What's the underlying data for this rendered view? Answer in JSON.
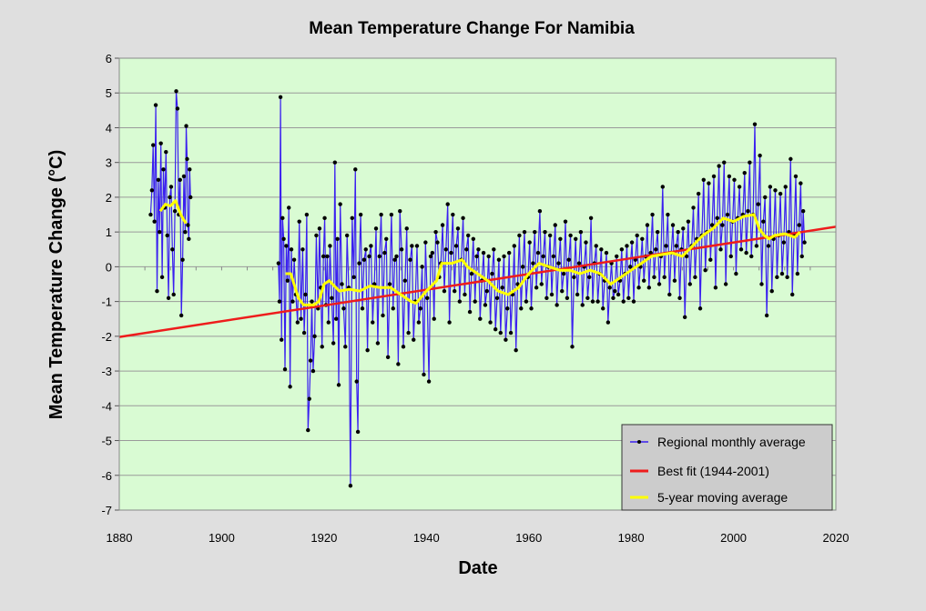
{
  "chart_data": {
    "type": "line",
    "title": "Mean Temperature Change For Namibia",
    "xlabel": "Date",
    "ylabel": "Mean  Temperature  Change  (°C)",
    "xlim": [
      1880,
      2020
    ],
    "ylim": [
      -7,
      6
    ],
    "x_ticks": [
      "1880",
      "1900",
      "1920",
      "1940",
      "1960",
      "1980",
      "2000",
      "2020"
    ],
    "y_ticks": [
      "6",
      "5",
      "4",
      "3",
      "2",
      "1",
      "0",
      "-1",
      "-2",
      "-3",
      "-4",
      "-5",
      "-6",
      "-7"
    ],
    "grid": "horizontal",
    "legend_position": "bottom-right",
    "colors": {
      "plot_bg": "#d9fbd3",
      "monthly": "#3a1ff0",
      "marker": "#000000",
      "fit": "#ee1c1c",
      "moving": "#ffff00",
      "legend_bg": "#cccccc"
    },
    "series": [
      {
        "name": "Regional monthly average",
        "values_by_year": {
          "1886": [
            1.5,
            2.2,
            3.5,
            1.3
          ],
          "1887": [
            4.65,
            -0.7,
            2.5,
            1.0
          ],
          "1888": [
            3.55,
            -0.3,
            2.8,
            1.7
          ],
          "1889": [
            3.3,
            0.9,
            -0.9,
            2.0
          ],
          "1890": [
            2.3,
            0.5,
            -0.8,
            1.6
          ],
          "1891": [
            5.05,
            4.55,
            1.5,
            2.5
          ],
          "1892": [
            -1.4,
            0.2,
            2.6,
            1.0
          ],
          "1893": [
            4.05,
            3.1,
            1.2,
            0.8,
            2.8,
            2.0
          ],
          "1911": [
            0.1,
            -1.0,
            4.88,
            -2.1,
            1.4
          ],
          "1912": [
            0.8,
            -2.95,
            0.6,
            -0.4
          ],
          "1913": [
            1.7,
            -3.45,
            0.5,
            -1.0
          ],
          "1914": [
            0.2,
            -0.8,
            -1.6
          ],
          "1915": [
            1.3,
            -1.5,
            0.5
          ],
          "1916": [
            -1.9,
            -0.8,
            1.5,
            -4.7
          ],
          "1917": [
            -3.8,
            -2.7,
            -1.0,
            -3.0
          ],
          "1918": [
            -2.0,
            0.9,
            -1.2
          ],
          "1919": [
            1.1,
            -0.6,
            -2.3,
            0.3
          ],
          "1920": [
            1.4,
            -1.1,
            0.3,
            -1.6
          ],
          "1921": [
            0.6,
            -0.9,
            -2.2
          ],
          "1922": [
            3.0,
            -1.5,
            0.8,
            -3.4
          ],
          "1923": [
            1.8,
            -0.5,
            -1.2
          ],
          "1924": [
            -2.3,
            0.9,
            -0.6
          ],
          "1925": [
            -6.3,
            1.4,
            -0.3
          ],
          "1926": [
            2.8,
            -3.3,
            -4.75,
            0.1
          ],
          "1927": [
            1.5,
            -1.2,
            0.2
          ],
          "1928": [
            0.5,
            -2.4,
            0.3
          ],
          "1929": [
            0.6,
            -1.6,
            -0.5
          ],
          "1930": [
            1.1,
            -2.2,
            0.3
          ],
          "1931": [
            1.5,
            -1.4,
            0.4
          ],
          "1932": [
            0.8,
            -2.6,
            -0.5
          ],
          "1933": [
            1.5,
            -1.2,
            0.2
          ],
          "1934": [
            0.3,
            -2.8,
            1.6
          ],
          "1935": [
            0.5,
            -2.3,
            -0.4
          ],
          "1936": [
            1.1,
            -1.9,
            0.2
          ],
          "1937": [
            0.6,
            -2.1,
            -1.0
          ],
          "1938": [
            0.6,
            -1.6,
            -1.2
          ],
          "1939": [
            0.0,
            -3.1,
            0.7
          ],
          "1940": [
            -0.9,
            -3.3,
            0.3
          ],
          "1941": [
            0.4,
            -1.5,
            1.0
          ],
          "1942": [
            0.7,
            -0.3,
            0.1
          ],
          "1943": [
            1.2,
            -0.7,
            0.5
          ],
          "1944": [
            1.8,
            -1.6,
            0.4
          ],
          "1945": [
            1.5,
            -0.7,
            0.6
          ],
          "1946": [
            1.1,
            -1.0,
            0.2
          ],
          "1947": [
            1.4,
            -0.8,
            0.5
          ],
          "1948": [
            0.9,
            -1.3,
            -0.2
          ],
          "1949": [
            0.8,
            -1.0,
            0.3
          ],
          "1950": [
            0.5,
            -1.5,
            -0.4
          ],
          "1951": [
            0.4,
            -1.1,
            -0.7
          ],
          "1952": [
            0.3,
            -1.6,
            -0.2
          ],
          "1953": [
            0.5,
            -1.8,
            -0.9
          ],
          "1954": [
            0.2,
            -1.9,
            -0.6
          ],
          "1955": [
            0.3,
            -2.1,
            -1.2
          ],
          "1956": [
            0.4,
            -1.9,
            -0.8
          ],
          "1957": [
            0.6,
            -2.4,
            -0.5
          ],
          "1958": [
            0.9,
            -1.2,
            0.0
          ],
          "1959": [
            1.0,
            -1.0,
            -0.3
          ],
          "1960": [
            0.7,
            -1.2,
            0.1
          ],
          "1961": [
            1.0,
            -0.6,
            0.4
          ],
          "1962": [
            1.6,
            -0.5,
            0.3
          ],
          "1963": [
            1.0,
            -0.9,
            0.0
          ],
          "1964": [
            0.9,
            -0.8,
            0.3
          ],
          "1965": [
            1.2,
            -1.1,
            0.1
          ],
          "1966": [
            0.8,
            -0.7,
            -0.2
          ],
          "1967": [
            1.3,
            -0.9,
            0.2
          ],
          "1968": [
            0.9,
            -2.3,
            -0.3
          ],
          "1969": [
            0.8,
            -0.8,
            0.1
          ],
          "1970": [
            1.0,
            -1.1,
            0.0
          ],
          "1971": [
            0.7,
            -0.9,
            -0.3
          ],
          "1972": [
            1.4,
            -1.0,
            0.1
          ],
          "1973": [
            0.6,
            -1.0,
            -0.2
          ],
          "1974": [
            0.5,
            -1.2,
            -0.4
          ],
          "1975": [
            0.4,
            -1.6,
            -0.6
          ],
          "1976": [
            0.1,
            -0.9,
            -0.7
          ],
          "1977": [
            0.3,
            -0.8,
            -0.4
          ],
          "1978": [
            0.5,
            -1.0,
            -0.2
          ],
          "1979": [
            0.6,
            -0.9,
            0.0
          ],
          "1980": [
            0.7,
            -1.0,
            0.2
          ],
          "1981": [
            0.9,
            -0.6,
            0.0
          ],
          "1982": [
            0.8,
            -0.4,
            0.3
          ],
          "1983": [
            1.2,
            -0.6,
            0.4
          ],
          "1984": [
            1.5,
            -0.3,
            0.5
          ],
          "1985": [
            1.0,
            -0.5,
            0.3
          ],
          "1986": [
            2.3,
            -0.3,
            0.6
          ],
          "1987": [
            1.5,
            -0.8,
            0.4
          ],
          "1988": [
            1.2,
            -0.4,
            0.6
          ],
          "1989": [
            1.0,
            -0.9,
            0.5
          ],
          "1990": [
            1.1,
            -1.45,
            0.3
          ],
          "1991": [
            1.3,
            -0.5,
            0.6
          ],
          "1992": [
            1.7,
            -0.3,
            0.8
          ],
          "1993": [
            2.1,
            -1.2,
            0.9
          ],
          "1994": [
            2.5,
            -0.1,
            1.0
          ],
          "1995": [
            2.4,
            0.2,
            1.2
          ],
          "1996": [
            2.6,
            -0.6,
            1.4
          ],
          "1997": [
            2.9,
            0.5,
            1.2
          ],
          "1998": [
            3.0,
            -0.5,
            1.5
          ],
          "1999": [
            2.6,
            0.3,
            1.3
          ],
          "2000": [
            2.5,
            -0.2,
            1.4
          ],
          "2001": [
            2.3,
            0.5,
            1.5
          ],
          "2002": [
            2.7,
            0.4,
            1.6
          ],
          "2003": [
            3.0,
            0.3,
            1.5
          ],
          "2004": [
            4.1,
            0.6,
            1.8
          ],
          "2005": [
            3.2,
            -0.5,
            1.3
          ],
          "2006": [
            2.0,
            -1.4,
            0.6
          ],
          "2007": [
            2.3,
            -0.7,
            0.8
          ],
          "2008": [
            2.2,
            -0.3,
            0.9
          ],
          "2009": [
            2.1,
            -0.2,
            0.7
          ],
          "2010": [
            2.3,
            -0.3,
            1.0
          ],
          "2011": [
            3.1,
            -0.8,
            0.9
          ],
          "2012": [
            2.6,
            -0.2,
            1.2
          ],
          "2013": [
            2.4,
            0.3,
            1.6,
            0.7
          ]
        }
      },
      {
        "name": "Best fit (1944-2001)",
        "points": [
          [
            1880,
            -2.02
          ],
          [
            2020,
            1.15
          ]
        ]
      },
      {
        "name": "5-year moving average",
        "segments": [
          [
            [
              1888,
              1.6
            ],
            [
              1889,
              1.8
            ],
            [
              1890,
              1.75
            ],
            [
              1891,
              1.9
            ],
            [
              1892,
              1.5
            ],
            [
              1893,
              1.25
            ]
          ],
          [
            [
              1912.5,
              -0.2
            ],
            [
              1913.5,
              -0.2
            ],
            [
              1915,
              -0.9
            ],
            [
              1916,
              -1.1
            ],
            [
              1918,
              -1.1
            ],
            [
              1919,
              -1.0
            ],
            [
              1920,
              -0.5
            ],
            [
              1921,
              -0.4
            ],
            [
              1923,
              -0.7
            ],
            [
              1925,
              -0.65
            ],
            [
              1927,
              -0.7
            ],
            [
              1929,
              -0.55
            ],
            [
              1931,
              -0.6
            ],
            [
              1933,
              -0.6
            ],
            [
              1935,
              -0.8
            ],
            [
              1937,
              -1.0
            ],
            [
              1938,
              -1.05
            ],
            [
              1940,
              -0.7
            ],
            [
              1942,
              -0.4
            ],
            [
              1943,
              0.1
            ],
            [
              1945,
              0.1
            ],
            [
              1947,
              0.2
            ],
            [
              1948,
              0.0
            ],
            [
              1950,
              -0.2
            ],
            [
              1952,
              -0.4
            ],
            [
              1954,
              -0.7
            ],
            [
              1956,
              -0.8
            ],
            [
              1958,
              -0.6
            ],
            [
              1960,
              -0.2
            ],
            [
              1962,
              0.1
            ],
            [
              1964,
              0.0
            ],
            [
              1966,
              -0.1
            ],
            [
              1968,
              -0.1
            ],
            [
              1970,
              -0.2
            ],
            [
              1972,
              -0.1
            ],
            [
              1974,
              -0.2
            ],
            [
              1976,
              -0.5
            ],
            [
              1978,
              -0.3
            ],
            [
              1980,
              -0.1
            ],
            [
              1982,
              0.1
            ],
            [
              1984,
              0.3
            ],
            [
              1986,
              0.35
            ],
            [
              1988,
              0.4
            ],
            [
              1990,
              0.3
            ],
            [
              1992,
              0.6
            ],
            [
              1994,
              0.9
            ],
            [
              1996,
              1.1
            ],
            [
              1998,
              1.4
            ],
            [
              2000,
              1.3
            ],
            [
              2002,
              1.45
            ],
            [
              2004,
              1.5
            ],
            [
              2005,
              1.1
            ],
            [
              2006,
              0.9
            ],
            [
              2007,
              0.8
            ],
            [
              2008,
              0.9
            ],
            [
              2010,
              0.95
            ],
            [
              2012,
              0.85
            ],
            [
              2013,
              1.0
            ]
          ]
        ]
      }
    ]
  }
}
